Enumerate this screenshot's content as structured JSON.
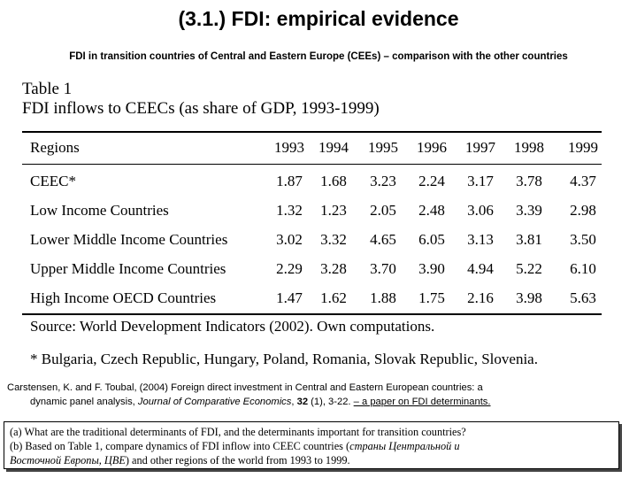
{
  "title": "(3.1.) FDI: empirical evidence",
  "subtitle": "FDI in transition countries of Central and Eastern Europe (CEEs) – comparison with the other countries",
  "table": {
    "label": "Table 1",
    "caption": "FDI inflows to CEECs (as share of GDP, 1993-1999)",
    "header": {
      "region": "Regions",
      "years": [
        "1993",
        "1994",
        "1995",
        "1996",
        "1997",
        "1998",
        "1999"
      ]
    },
    "rows": [
      {
        "region": "CEEC*",
        "values": [
          "1.87",
          "1.68",
          "3.23",
          "2.24",
          "3.17",
          "3.78",
          "4.37"
        ]
      },
      {
        "region": "Low Income Countries",
        "values": [
          "1.32",
          "1.23",
          "2.05",
          "2.48",
          "3.06",
          "3.39",
          "2.98"
        ]
      },
      {
        "region": "Lower Middle Income Countries",
        "values": [
          "3.02",
          "3.32",
          "4.65",
          "6.05",
          "3.13",
          "3.81",
          "3.50"
        ]
      },
      {
        "region": "Upper Middle Income Countries",
        "values": [
          "2.29",
          "3.28",
          "3.70",
          "3.90",
          "4.94",
          "5.22",
          "6.10"
        ]
      },
      {
        "region": "High Income OECD Countries",
        "values": [
          "1.47",
          "1.62",
          "1.88",
          "1.75",
          "2.16",
          "3.98",
          "5.63"
        ]
      }
    ],
    "source": "Source: World Development Indicators (2002). Own computations.",
    "footnote": "* Bulgaria, Czech Republic, Hungary, Poland, Romania, Slovak Republic, Slovenia."
  },
  "citation": {
    "authors": "Carstensen, K. and F. Toubal, (2004)",
    "paper_title": "Foreign direct investment in Central and Eastern European countries: a",
    "paper_title_cont": "dynamic panel analysis,",
    "journal": "Journal of Comparative Economics",
    "volume": "32",
    "issue_pages": "(1), 3-22.",
    "link_text": "– a paper on FDI determinants."
  },
  "tasks": {
    "a": "(a) What are the traditional determinants of FDI, and the determinants important for transition countries?",
    "b_start": "(b) Based on Table 1, compare dynamics of FDI inflow into CEEC countries (",
    "b_russian_1": "страны Центральной и",
    "b_russian_2": "Восточной Европы, ЦВЕ",
    "b_end": ") and other regions of the world from 1993 to 1999."
  }
}
